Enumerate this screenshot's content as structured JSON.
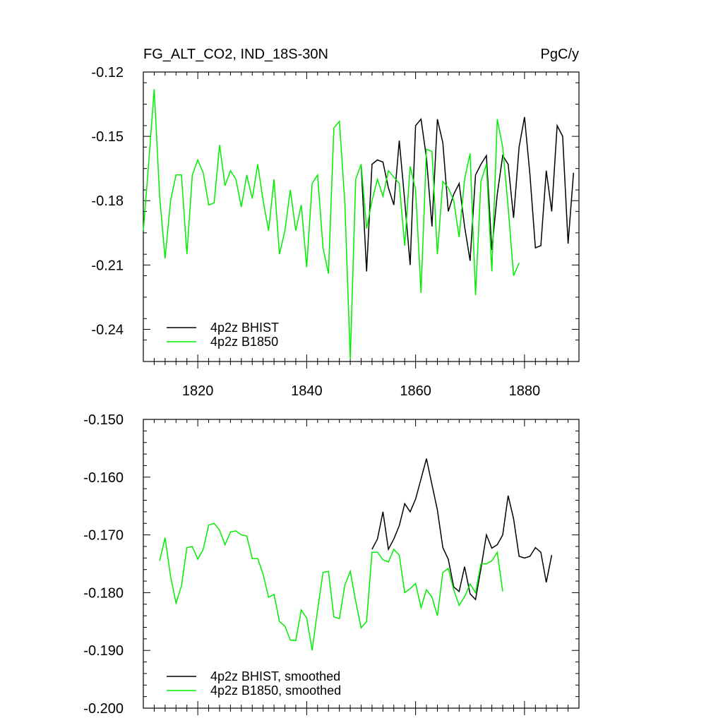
{
  "colors": {
    "bhist": "#000000",
    "b1850": "#00ee00",
    "axis": "#000000"
  },
  "chart_data": [
    {
      "type": "line",
      "title": "FG_ALT_CO2, IND_18S-30N",
      "units": "PgC/y",
      "xlim": [
        1810,
        1890
      ],
      "ylim": [
        -0.255,
        -0.12
      ],
      "yticks": [
        "-0.12",
        "-0.15",
        "-0.18",
        "-0.21",
        "-0.24"
      ],
      "ytick_values": [
        -0.12,
        -0.15,
        -0.18,
        -0.21,
        -0.24
      ],
      "xticks": [
        "1820",
        "1840",
        "1860",
        "1880"
      ],
      "xtick_values": [
        1820,
        1840,
        1860,
        1880
      ],
      "legend_position": "bottom-left",
      "series": [
        {
          "name": "4p2z BHIST",
          "color": "#000000",
          "x": [
            1850,
            1851,
            1852,
            1853,
            1854,
            1855,
            1856,
            1857,
            1858,
            1859,
            1860,
            1861,
            1862,
            1863,
            1864,
            1865,
            1866,
            1867,
            1868,
            1869,
            1870,
            1871,
            1872,
            1873,
            1874,
            1875,
            1876,
            1877,
            1878,
            1879,
            1880,
            1881,
            1882,
            1883,
            1884,
            1885,
            1886,
            1887,
            1888,
            1889
          ],
          "y": [
            -0.163,
            -0.213,
            -0.163,
            -0.161,
            -0.162,
            -0.174,
            -0.182,
            -0.152,
            -0.18,
            -0.21,
            -0.145,
            -0.142,
            -0.16,
            -0.192,
            -0.142,
            -0.153,
            -0.185,
            -0.177,
            -0.172,
            -0.192,
            -0.208,
            -0.168,
            -0.163,
            -0.159,
            -0.203,
            -0.177,
            -0.159,
            -0.163,
            -0.188,
            -0.155,
            -0.141,
            -0.168,
            -0.202,
            -0.201,
            -0.166,
            -0.185,
            -0.145,
            -0.15,
            -0.2,
            -0.167
          ]
        },
        {
          "name": "4p2z B1850",
          "color": "#00ee00",
          "x": [
            1810,
            1811,
            1812,
            1813,
            1814,
            1815,
            1816,
            1817,
            1818,
            1819,
            1820,
            1821,
            1822,
            1823,
            1824,
            1825,
            1826,
            1827,
            1828,
            1829,
            1830,
            1831,
            1832,
            1833,
            1834,
            1835,
            1836,
            1837,
            1838,
            1839,
            1840,
            1841,
            1842,
            1843,
            1844,
            1845,
            1846,
            1847,
            1848,
            1849,
            1850,
            1851,
            1852,
            1853,
            1854,
            1855,
            1856,
            1857,
            1858,
            1859,
            1860,
            1861,
            1862,
            1863,
            1864,
            1865,
            1866,
            1867,
            1868,
            1869,
            1870,
            1871,
            1872,
            1873,
            1874,
            1875,
            1876,
            1877,
            1878,
            1879
          ],
          "y": [
            -0.194,
            -0.162,
            -0.128,
            -0.178,
            -0.207,
            -0.18,
            -0.168,
            -0.168,
            -0.205,
            -0.168,
            -0.161,
            -0.167,
            -0.182,
            -0.181,
            -0.154,
            -0.173,
            -0.166,
            -0.17,
            -0.183,
            -0.168,
            -0.179,
            -0.163,
            -0.18,
            -0.194,
            -0.17,
            -0.205,
            -0.194,
            -0.175,
            -0.194,
            -0.182,
            -0.211,
            -0.172,
            -0.168,
            -0.202,
            -0.214,
            -0.146,
            -0.143,
            -0.181,
            -0.254,
            -0.17,
            -0.163,
            -0.193,
            -0.18,
            -0.17,
            -0.178,
            -0.166,
            -0.169,
            -0.172,
            -0.201,
            -0.164,
            -0.175,
            -0.223,
            -0.156,
            -0.157,
            -0.205,
            -0.171,
            -0.174,
            -0.18,
            -0.197,
            -0.17,
            -0.158,
            -0.224,
            -0.171,
            -0.163,
            -0.213,
            -0.142,
            -0.155,
            -0.183,
            -0.215,
            -0.209
          ]
        }
      ]
    },
    {
      "type": "line",
      "title": "",
      "units": "",
      "xlim": [
        1810,
        1890
      ],
      "ylim": [
        -0.2,
        -0.15
      ],
      "yticks": [
        "-0.150",
        "-0.160",
        "-0.170",
        "-0.180",
        "-0.190",
        "-0.200"
      ],
      "ytick_values": [
        -0.15,
        -0.16,
        -0.17,
        -0.18,
        -0.19,
        -0.2
      ],
      "xticks": [],
      "xtick_values": [
        1820,
        1840,
        1860,
        1880
      ],
      "legend_position": "bottom-left",
      "series": [
        {
          "name": "4p2z BHIST, smoothed",
          "color": "#000000",
          "x": [
            1852,
            1853,
            1854,
            1855,
            1856,
            1857,
            1858,
            1859,
            1860,
            1861,
            1862,
            1863,
            1864,
            1865,
            1866,
            1867,
            1868,
            1869,
            1870,
            1871,
            1872,
            1873,
            1874,
            1875,
            1876,
            1877,
            1878,
            1879,
            1880,
            1881,
            1882,
            1883,
            1884,
            1885,
            1886
          ],
          "y": [
            -0.1725,
            -0.1707,
            -0.166,
            -0.1725,
            -0.1707,
            -0.1684,
            -0.1646,
            -0.166,
            -0.1638,
            -0.1603,
            -0.1568,
            -0.1613,
            -0.1657,
            -0.1722,
            -0.1742,
            -0.179,
            -0.1798,
            -0.1755,
            -0.1802,
            -0.1812,
            -0.1758,
            -0.17,
            -0.1723,
            -0.1717,
            -0.17,
            -0.1632,
            -0.1672,
            -0.1737,
            -0.174,
            -0.1737,
            -0.1722,
            -0.173,
            -0.1782,
            -0.1735,
            null
          ]
        },
        {
          "name": "4p2z B1850, smoothed",
          "color": "#00ee00",
          "x": [
            1813,
            1814,
            1815,
            1816,
            1817,
            1818,
            1819,
            1820,
            1821,
            1822,
            1823,
            1824,
            1825,
            1826,
            1827,
            1828,
            1829,
            1830,
            1831,
            1832,
            1833,
            1834,
            1835,
            1836,
            1837,
            1838,
            1839,
            1840,
            1841,
            1842,
            1843,
            1844,
            1845,
            1846,
            1847,
            1848,
            1849,
            1850,
            1851,
            1852,
            1853,
            1854,
            1855,
            1856,
            1857,
            1858,
            1859,
            1860,
            1861,
            1862,
            1863,
            1864,
            1865,
            1866,
            1867,
            1868,
            1869,
            1870,
            1871,
            1872,
            1873,
            1874,
            1875,
            1876
          ],
          "y": [
            -0.1745,
            -0.1705,
            -0.1772,
            -0.1818,
            -0.1788,
            -0.1722,
            -0.172,
            -0.1742,
            -0.1725,
            -0.1683,
            -0.168,
            -0.1692,
            -0.1717,
            -0.1695,
            -0.1693,
            -0.17,
            -0.1702,
            -0.1741,
            -0.1741,
            -0.1768,
            -0.1808,
            -0.1803,
            -0.185,
            -0.1858,
            -0.1882,
            -0.1883,
            -0.183,
            -0.1844,
            -0.19,
            -0.183,
            -0.1765,
            -0.1763,
            -0.1842,
            -0.1845,
            -0.1787,
            -0.1763,
            -0.1815,
            -0.1861,
            -0.185,
            -0.173,
            -0.173,
            -0.1743,
            -0.1747,
            -0.1725,
            -0.1735,
            -0.18,
            -0.1793,
            -0.1784,
            -0.1826,
            -0.1795,
            -0.1808,
            -0.184,
            -0.1765,
            -0.1758,
            -0.1795,
            -0.1822,
            -0.1807,
            -0.1785,
            -0.18,
            -0.175,
            -0.175,
            -0.1745,
            -0.173,
            -0.1798
          ]
        }
      ]
    }
  ]
}
